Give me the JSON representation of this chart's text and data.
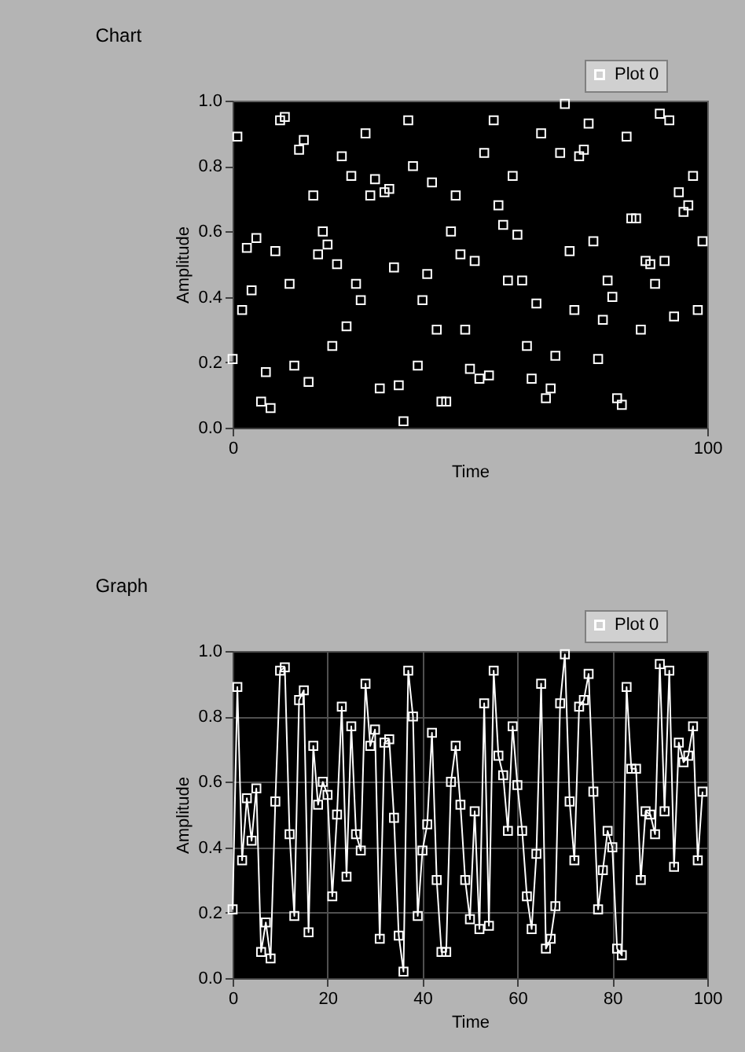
{
  "chart_data": [
    {
      "type": "scatter",
      "title": "Chart",
      "xlabel": "Time",
      "ylabel": "Amplitude",
      "marker": "square",
      "legend": "top right",
      "xlim": [
        0,
        100
      ],
      "xticks": [
        0,
        100
      ],
      "ylim": [
        0,
        1
      ],
      "yticks": [
        {
          "value": 0,
          "label": "0.0"
        },
        {
          "value": 0.2,
          "label": "0.2"
        },
        {
          "value": 0.4,
          "label": "0.4"
        },
        {
          "value": 0.6,
          "label": "0.6"
        },
        {
          "value": 0.8,
          "label": "0.8"
        },
        {
          "value": 1,
          "label": "1.0"
        }
      ],
      "x": [
        0,
        1,
        2,
        3,
        4,
        5,
        6,
        7,
        8,
        9,
        10,
        11,
        12,
        13,
        14,
        15,
        16,
        17,
        18,
        19,
        20,
        21,
        22,
        23,
        24,
        25,
        26,
        27,
        28,
        29,
        30,
        31,
        32,
        33,
        34,
        35,
        36,
        37,
        38,
        39,
        40,
        41,
        42,
        43,
        44,
        45,
        46,
        47,
        48,
        49,
        50,
        51,
        52,
        53,
        54,
        55,
        56,
        57,
        58,
        59,
        60,
        61,
        62,
        63,
        64,
        65,
        66,
        67,
        68,
        69,
        70,
        71,
        72,
        73,
        74,
        75,
        76,
        77,
        78,
        79,
        80,
        81,
        82,
        83,
        84,
        85,
        86,
        87,
        88,
        89,
        90,
        91,
        92,
        93,
        94,
        95,
        96,
        97,
        98,
        99
      ],
      "series": [
        {
          "name": "Plot 0",
          "color": "#ffffff",
          "values": [
            0.21,
            0.89,
            0.36,
            0.55,
            0.42,
            0.58,
            0.08,
            0.17,
            0.06,
            0.54,
            0.94,
            0.95,
            0.44,
            0.19,
            0.85,
            0.88,
            0.14,
            0.71,
            0.53,
            0.6,
            0.56,
            0.25,
            0.5,
            0.83,
            0.31,
            0.77,
            0.44,
            0.39,
            0.9,
            0.71,
            0.76,
            0.12,
            0.72,
            0.73,
            0.49,
            0.13,
            0.02,
            0.94,
            0.8,
            0.19,
            0.39,
            0.47,
            0.75,
            0.3,
            0.08,
            0.08,
            0.6,
            0.71,
            0.53,
            0.3,
            0.18,
            0.51,
            0.15,
            0.84,
            0.16,
            0.94,
            0.68,
            0.62,
            0.45,
            0.77,
            0.59,
            0.45,
            0.25,
            0.15,
            0.38,
            0.9,
            0.09,
            0.12,
            0.22,
            0.84,
            0.99,
            0.54,
            0.36,
            0.83,
            0.85,
            0.93,
            0.57,
            0.21,
            0.33,
            0.45,
            0.4,
            0.09,
            0.07,
            0.89,
            0.64,
            0.64,
            0.3,
            0.51,
            0.5,
            0.44,
            0.96,
            0.51,
            0.94,
            0.34,
            0.72,
            0.66,
            0.68,
            0.77,
            0.36,
            0.57
          ]
        }
      ]
    },
    {
      "type": "line",
      "title": "Graph",
      "xlabel": "Time",
      "ylabel": "Amplitude",
      "marker": "square",
      "legend": "top right",
      "grid": true,
      "xlim": [
        0,
        100
      ],
      "xticks": [
        0,
        20,
        40,
        60,
        80,
        100
      ],
      "ylim": [
        0,
        1
      ],
      "yticks": [
        {
          "value": 0,
          "label": "0.0"
        },
        {
          "value": 0.2,
          "label": "0.2"
        },
        {
          "value": 0.4,
          "label": "0.4"
        },
        {
          "value": 0.6,
          "label": "0.6"
        },
        {
          "value": 0.8,
          "label": "0.8"
        },
        {
          "value": 1,
          "label": "1.0"
        }
      ],
      "x": [
        0,
        1,
        2,
        3,
        4,
        5,
        6,
        7,
        8,
        9,
        10,
        11,
        12,
        13,
        14,
        15,
        16,
        17,
        18,
        19,
        20,
        21,
        22,
        23,
        24,
        25,
        26,
        27,
        28,
        29,
        30,
        31,
        32,
        33,
        34,
        35,
        36,
        37,
        38,
        39,
        40,
        41,
        42,
        43,
        44,
        45,
        46,
        47,
        48,
        49,
        50,
        51,
        52,
        53,
        54,
        55,
        56,
        57,
        58,
        59,
        60,
        61,
        62,
        63,
        64,
        65,
        66,
        67,
        68,
        69,
        70,
        71,
        72,
        73,
        74,
        75,
        76,
        77,
        78,
        79,
        80,
        81,
        82,
        83,
        84,
        85,
        86,
        87,
        88,
        89,
        90,
        91,
        92,
        93,
        94,
        95,
        96,
        97,
        98,
        99
      ],
      "series": [
        {
          "name": "Plot 0",
          "color": "#ffffff",
          "values": [
            0.21,
            0.89,
            0.36,
            0.55,
            0.42,
            0.58,
            0.08,
            0.17,
            0.06,
            0.54,
            0.94,
            0.95,
            0.44,
            0.19,
            0.85,
            0.88,
            0.14,
            0.71,
            0.53,
            0.6,
            0.56,
            0.25,
            0.5,
            0.83,
            0.31,
            0.77,
            0.44,
            0.39,
            0.9,
            0.71,
            0.76,
            0.12,
            0.72,
            0.73,
            0.49,
            0.13,
            0.02,
            0.94,
            0.8,
            0.19,
            0.39,
            0.47,
            0.75,
            0.3,
            0.08,
            0.08,
            0.6,
            0.71,
            0.53,
            0.3,
            0.18,
            0.51,
            0.15,
            0.84,
            0.16,
            0.94,
            0.68,
            0.62,
            0.45,
            0.77,
            0.59,
            0.45,
            0.25,
            0.15,
            0.38,
            0.9,
            0.09,
            0.12,
            0.22,
            0.84,
            0.99,
            0.54,
            0.36,
            0.83,
            0.85,
            0.93,
            0.57,
            0.21,
            0.33,
            0.45,
            0.4,
            0.09,
            0.07,
            0.89,
            0.64,
            0.64,
            0.3,
            0.51,
            0.5,
            0.44,
            0.96,
            0.51,
            0.94,
            0.34,
            0.72,
            0.66,
            0.68,
            0.77,
            0.36,
            0.57
          ]
        }
      ]
    }
  ]
}
